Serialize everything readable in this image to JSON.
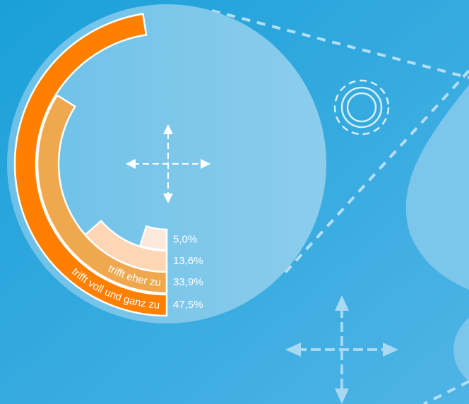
{
  "chart_data": {
    "type": "radial_bar",
    "categories": [
      "trifft voll und ganz zu",
      "trifft eher zu",
      null,
      null
    ],
    "values": [
      47.5,
      33.9,
      13.6,
      5.0
    ],
    "value_labels": [
      "47,5%",
      "33,9%",
      "13,6%",
      "5,0%"
    ],
    "colors": [
      "#ff7f00",
      "#f0a84e",
      "#fdd6b5",
      "#fde8dc"
    ],
    "ylim": [
      0,
      100
    ]
  }
}
